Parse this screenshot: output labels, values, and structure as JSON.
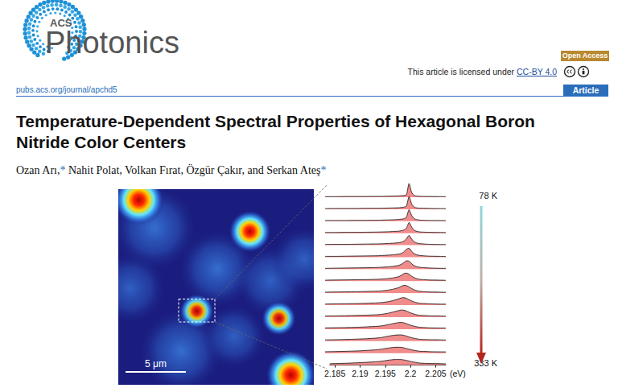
{
  "header": {
    "logo": {
      "small": "ACS",
      "large": "Photonics"
    },
    "open_access": "Open Access",
    "license": {
      "text": "This article is licensed under ",
      "link": "CC-BY 4.0"
    },
    "url": "pubs.acs.org/journal/apchd5",
    "article_type": "Article"
  },
  "title": [
    "Temperature-Dependent Spectral Properties of Hexagonal Boron",
    "Nitride Color Centers"
  ],
  "authors": "Ozan Arı,* Nahit Polat, Volkan Fırat, Özgür Çakır, and Serkan Ateş*",
  "map": {
    "extent_um": [
      16.2,
      16.2
    ],
    "spots": [
      {
        "x": 3.0,
        "y": 3.2,
        "radius": 2.6,
        "intensity": 0.3
      },
      {
        "x": 8.2,
        "y": 6.6,
        "radius": 2.4,
        "intensity": 0.3
      },
      {
        "x": 12.6,
        "y": 7.6,
        "radius": 2.2,
        "intensity": 0.25
      },
      {
        "x": 5.2,
        "y": 13.4,
        "radius": 2.6,
        "intensity": 0.3
      },
      {
        "x": 15.4,
        "y": 5.8,
        "radius": 2.0,
        "intensity": 0.25
      },
      {
        "x": 9.6,
        "y": 12.2,
        "radius": 2.0,
        "intensity": 0.25
      },
      {
        "x": 1.0,
        "y": 8.2,
        "radius": 2.2,
        "intensity": 0.25
      },
      {
        "x": 1.7,
        "y": 0.9,
        "radius": 1.3,
        "intensity": 1.0
      },
      {
        "x": 10.9,
        "y": 3.5,
        "radius": 1.1,
        "intensity": 0.9
      },
      {
        "x": 6.5,
        "y": 10.1,
        "radius": 0.9,
        "intensity": 0.8
      },
      {
        "x": 13.3,
        "y": 10.7,
        "radius": 0.9,
        "intensity": 0.8
      },
      {
        "x": 14.3,
        "y": 15.4,
        "radius": 1.3,
        "intensity": 1.0
      }
    ],
    "zoom_box": {
      "x0": 5.0,
      "y0": 9.1,
      "x1": 8.0,
      "y1": 11.0
    },
    "scale_bar": {
      "length": 5,
      "label": "5 μm"
    }
  },
  "chart_data": {
    "type": "line",
    "x": [
      2.184,
      2.186,
      2.188,
      2.19,
      2.192,
      2.194,
      2.195,
      2.196,
      2.197,
      2.198,
      2.1985,
      2.199,
      2.1995,
      2.2,
      2.2005,
      2.201,
      2.2015,
      2.202,
      2.203,
      2.204,
      2.206,
      2.207
    ],
    "xlim": [
      2.184,
      2.207
    ],
    "xticks": [
      2.185,
      2.19,
      2.195,
      2.2,
      2.205
    ],
    "x_label": "(eV)",
    "ylim": [
      0,
      1
    ],
    "tick_labels": "x",
    "color": "#f08c8c",
    "series": [
      {
        "name": "78 K",
        "values": [
          0.04,
          0.04,
          0.05,
          0.05,
          0.05,
          0.06,
          0.06,
          0.07,
          0.08,
          0.09,
          0.1,
          0.12,
          0.17,
          0.95,
          0.33,
          0.12,
          0.08,
          0.06,
          0.05,
          0.05,
          0.04,
          0.04
        ]
      },
      {
        "values": [
          0.04,
          0.05,
          0.05,
          0.05,
          0.06,
          0.06,
          0.07,
          0.08,
          0.09,
          0.1,
          0.12,
          0.14,
          0.22,
          0.88,
          0.36,
          0.14,
          0.09,
          0.07,
          0.06,
          0.05,
          0.04,
          0.04
        ]
      },
      {
        "values": [
          0.05,
          0.05,
          0.05,
          0.06,
          0.06,
          0.07,
          0.08,
          0.09,
          0.1,
          0.12,
          0.14,
          0.17,
          0.28,
          0.8,
          0.4,
          0.17,
          0.11,
          0.08,
          0.06,
          0.05,
          0.05,
          0.04
        ]
      },
      {
        "values": [
          0.05,
          0.05,
          0.06,
          0.06,
          0.07,
          0.08,
          0.09,
          0.1,
          0.12,
          0.14,
          0.17,
          0.22,
          0.36,
          0.74,
          0.42,
          0.2,
          0.13,
          0.09,
          0.07,
          0.06,
          0.05,
          0.05
        ]
      },
      {
        "values": [
          0.05,
          0.06,
          0.06,
          0.07,
          0.08,
          0.09,
          0.1,
          0.12,
          0.14,
          0.17,
          0.21,
          0.28,
          0.45,
          0.68,
          0.42,
          0.23,
          0.15,
          0.11,
          0.08,
          0.06,
          0.05,
          0.05
        ]
      },
      {
        "values": [
          0.06,
          0.06,
          0.07,
          0.08,
          0.09,
          0.1,
          0.12,
          0.14,
          0.17,
          0.21,
          0.26,
          0.36,
          0.55,
          0.62,
          0.4,
          0.24,
          0.16,
          0.12,
          0.09,
          0.07,
          0.06,
          0.05
        ]
      },
      {
        "values": [
          0.06,
          0.07,
          0.08,
          0.09,
          0.1,
          0.12,
          0.14,
          0.16,
          0.2,
          0.26,
          0.33,
          0.45,
          0.58,
          0.55,
          0.37,
          0.24,
          0.17,
          0.13,
          0.1,
          0.08,
          0.06,
          0.06
        ]
      },
      {
        "values": [
          0.07,
          0.08,
          0.09,
          0.1,
          0.11,
          0.13,
          0.15,
          0.18,
          0.23,
          0.31,
          0.4,
          0.52,
          0.56,
          0.48,
          0.34,
          0.24,
          0.17,
          0.13,
          0.1,
          0.08,
          0.07,
          0.06
        ]
      },
      {
        "values": [
          0.07,
          0.08,
          0.09,
          0.1,
          0.12,
          0.14,
          0.17,
          0.21,
          0.28,
          0.38,
          0.47,
          0.54,
          0.52,
          0.43,
          0.32,
          0.23,
          0.17,
          0.13,
          0.1,
          0.08,
          0.07,
          0.06
        ]
      },
      {
        "values": [
          0.08,
          0.09,
          0.1,
          0.11,
          0.13,
          0.16,
          0.19,
          0.24,
          0.32,
          0.43,
          0.5,
          0.52,
          0.47,
          0.38,
          0.29,
          0.22,
          0.17,
          0.13,
          0.11,
          0.09,
          0.07,
          0.07
        ]
      },
      {
        "values": [
          0.08,
          0.09,
          0.1,
          0.12,
          0.14,
          0.17,
          0.21,
          0.27,
          0.36,
          0.45,
          0.49,
          0.48,
          0.42,
          0.34,
          0.27,
          0.21,
          0.16,
          0.13,
          0.11,
          0.09,
          0.08,
          0.07
        ]
      },
      {
        "values": [
          0.09,
          0.1,
          0.11,
          0.13,
          0.16,
          0.2,
          0.24,
          0.31,
          0.39,
          0.45,
          0.46,
          0.44,
          0.38,
          0.31,
          0.25,
          0.2,
          0.16,
          0.13,
          0.11,
          0.09,
          0.08,
          0.08
        ]
      },
      {
        "values": [
          0.09,
          0.1,
          0.12,
          0.14,
          0.17,
          0.22,
          0.27,
          0.34,
          0.4,
          0.43,
          0.43,
          0.4,
          0.35,
          0.29,
          0.24,
          0.19,
          0.16,
          0.13,
          0.11,
          0.1,
          0.09,
          0.08
        ]
      },
      {
        "values": [
          0.1,
          0.11,
          0.13,
          0.15,
          0.19,
          0.24,
          0.29,
          0.35,
          0.4,
          0.41,
          0.4,
          0.37,
          0.32,
          0.27,
          0.23,
          0.19,
          0.16,
          0.13,
          0.12,
          0.1,
          0.09,
          0.09
        ]
      },
      {
        "name": "333 K",
        "values": [
          0.1,
          0.12,
          0.14,
          0.17,
          0.21,
          0.26,
          0.31,
          0.36,
          0.39,
          0.39,
          0.37,
          0.34,
          0.3,
          0.26,
          0.22,
          0.19,
          0.16,
          0.14,
          0.12,
          0.11,
          0.1,
          0.09
        ]
      }
    ]
  }
}
